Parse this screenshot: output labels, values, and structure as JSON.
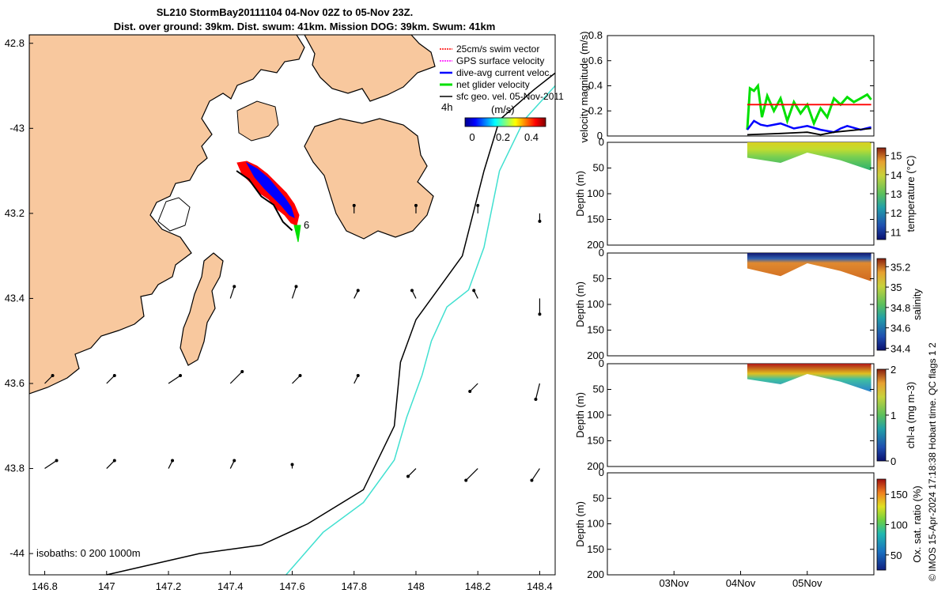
{
  "title": {
    "line1": "SL210 StormBay20111104 04-Nov 02Z to 05-Nov 23Z.",
    "line2": "Dist. over ground: 39km. Dist. swum: 41km. Mission DOG: 39km. Swum: 41km"
  },
  "footer_text": "© IMOS 15-Apr-2024 17:18:38 Hobart time. QC flags 1  2",
  "colors": {
    "land": "#f8c89e",
    "swim_vector": "#ff0000",
    "gps_velocity": "#ff00ff",
    "dive_avg": "#0000ff",
    "net_glider": "#00e000",
    "sfc_geo": "#000000",
    "isobath_200": "#000000",
    "isobath_1000": "#40e0d0"
  },
  "chart_data": [
    {
      "type": "map",
      "title": "SL210 StormBay20111104 04-Nov 02Z to 05-Nov 23Z.",
      "xlim": [
        146.75,
        148.45
      ],
      "ylim": [
        -44.05,
        -42.78
      ],
      "xticks": [
        146.8,
        147,
        147.2,
        147.4,
        147.6,
        147.8,
        148,
        148.2,
        148.4
      ],
      "xtick_labels": [
        "146.8",
        "147",
        "147.2",
        "147.4",
        "147.6",
        "147.8",
        "148",
        "148.2",
        "148.4"
      ],
      "yticks": [
        -42.8,
        -43,
        -43.2,
        -43.4,
        -43.6,
        -43.8,
        -44
      ],
      "ytick_labels": [
        "42.8",
        "-43",
        "43.2",
        "43.4",
        "43.6",
        "43.8",
        "-44"
      ],
      "legend": {
        "position": "top-right",
        "entries": [
          "25cm/s swim vector",
          "GPS surface velocity",
          "dive-avg current veloc.",
          "net glider velocity",
          "sfc geo. vel. 05-Nov-2011"
        ],
        "time_label": "4h",
        "day_marker": "6"
      },
      "colorbar": {
        "label": "(m/s)",
        "ticks": [
          0,
          0.2,
          0.4
        ],
        "tick_labels": [
          "0",
          "0.2",
          "0.4"
        ],
        "range": [
          0,
          0.5
        ]
      },
      "isobath_note": "isobaths: 0   200  1000m",
      "isobath_200": [
        [
          147.0,
          -44.05
        ],
        [
          147.3,
          -44.0
        ],
        [
          147.5,
          -43.98
        ],
        [
          147.65,
          -43.93
        ],
        [
          147.83,
          -43.85
        ],
        [
          147.93,
          -43.7
        ],
        [
          147.95,
          -43.55
        ],
        [
          148.0,
          -43.45
        ],
        [
          148.08,
          -43.37
        ],
        [
          148.15,
          -43.3
        ],
        [
          148.22,
          -43.1
        ],
        [
          148.27,
          -42.98
        ],
        [
          148.38,
          -42.91
        ],
        [
          148.45,
          -42.87
        ]
      ],
      "isobath_1000": [
        [
          147.58,
          -44.05
        ],
        [
          147.7,
          -43.95
        ],
        [
          147.83,
          -43.88
        ],
        [
          147.93,
          -43.78
        ],
        [
          147.97,
          -43.68
        ],
        [
          148.02,
          -43.58
        ],
        [
          148.05,
          -43.5
        ],
        [
          148.1,
          -43.42
        ],
        [
          148.17,
          -43.38
        ],
        [
          148.22,
          -43.28
        ],
        [
          148.27,
          -43.1
        ],
        [
          148.35,
          -42.98
        ],
        [
          148.45,
          -42.9
        ]
      ],
      "glider_track": [
        [
          147.42,
          -43.1
        ],
        [
          147.46,
          -43.12
        ],
        [
          147.5,
          -43.16
        ],
        [
          147.54,
          -43.18
        ],
        [
          147.57,
          -43.22
        ],
        [
          147.6,
          -43.24
        ]
      ],
      "geo_vectors": [
        {
          "lon": 147.4,
          "lat": -43.4,
          "u": 0.01,
          "v": 0.03
        },
        {
          "lon": 147.6,
          "lat": -43.4,
          "u": 0.01,
          "v": 0.03
        },
        {
          "lon": 147.8,
          "lat": -43.4,
          "u": 0.01,
          "v": 0.02
        },
        {
          "lon": 148.0,
          "lat": -43.4,
          "u": -0.01,
          "v": 0.02
        },
        {
          "lon": 148.2,
          "lat": -43.4,
          "u": -0.01,
          "v": 0.02
        },
        {
          "lon": 148.4,
          "lat": -43.4,
          "u": 0.0,
          "v": -0.04
        },
        {
          "lon": 146.8,
          "lat": -43.6,
          "u": 0.02,
          "v": 0.02
        },
        {
          "lon": 147.0,
          "lat": -43.6,
          "u": 0.02,
          "v": 0.02
        },
        {
          "lon": 147.2,
          "lat": -43.6,
          "u": 0.03,
          "v": 0.02
        },
        {
          "lon": 147.4,
          "lat": -43.6,
          "u": 0.03,
          "v": 0.03
        },
        {
          "lon": 147.6,
          "lat": -43.6,
          "u": 0.02,
          "v": 0.02
        },
        {
          "lon": 147.8,
          "lat": -43.6,
          "u": 0.01,
          "v": 0.02
        },
        {
          "lon": 148.2,
          "lat": -43.6,
          "u": -0.02,
          "v": -0.02
        },
        {
          "lon": 148.4,
          "lat": -43.6,
          "u": -0.01,
          "v": -0.04
        },
        {
          "lon": 146.8,
          "lat": -43.8,
          "u": 0.03,
          "v": 0.02
        },
        {
          "lon": 147.0,
          "lat": -43.8,
          "u": 0.02,
          "v": 0.02
        },
        {
          "lon": 147.2,
          "lat": -43.8,
          "u": 0.01,
          "v": 0.02
        },
        {
          "lon": 147.4,
          "lat": -43.8,
          "u": 0.01,
          "v": 0.02
        },
        {
          "lon": 147.6,
          "lat": -43.8,
          "u": 0.0,
          "v": 0.01
        },
        {
          "lon": 148.0,
          "lat": -43.8,
          "u": -0.02,
          "v": -0.02
        },
        {
          "lon": 148.2,
          "lat": -43.8,
          "u": -0.03,
          "v": -0.03
        },
        {
          "lon": 148.4,
          "lat": -43.8,
          "u": -0.02,
          "v": -0.03
        },
        {
          "lon": 147.8,
          "lat": -43.2,
          "u": 0.0,
          "v": 0.02
        },
        {
          "lon": 148.0,
          "lat": -43.2,
          "u": 0.0,
          "v": 0.02
        },
        {
          "lon": 148.2,
          "lat": -43.2,
          "u": 0.0,
          "v": 0.02
        },
        {
          "lon": 148.4,
          "lat": -43.2,
          "u": 0.0,
          "v": -0.02
        }
      ]
    },
    {
      "type": "line",
      "ylabel": "velocity magnitude (m/s)",
      "ylim": [
        0,
        0.8
      ],
      "yticks": [
        0,
        0.2,
        0.4,
        0.6,
        0.8
      ],
      "ytick_labels": [
        "0",
        "0.2",
        "0.4",
        "0.6",
        "0.8"
      ],
      "xlim": [
        1.0,
        3.0
      ],
      "series": [
        {
          "name": "net glider velocity",
          "color": "#00e000",
          "x": [
            2.05,
            2.07,
            2.1,
            2.13,
            2.16,
            2.2,
            2.25,
            2.3,
            2.35,
            2.4,
            2.45,
            2.5,
            2.55,
            2.6,
            2.65,
            2.7,
            2.75,
            2.8,
            2.85,
            2.9,
            2.95,
            2.98
          ],
          "values": [
            0.05,
            0.38,
            0.36,
            0.4,
            0.15,
            0.32,
            0.2,
            0.3,
            0.12,
            0.27,
            0.18,
            0.25,
            0.1,
            0.22,
            0.15,
            0.3,
            0.25,
            0.31,
            0.27,
            0.3,
            0.33,
            0.29
          ]
        },
        {
          "name": "dive-avg current veloc.",
          "color": "#0000ff",
          "x": [
            2.05,
            2.1,
            2.15,
            2.2,
            2.3,
            2.4,
            2.5,
            2.6,
            2.7,
            2.75,
            2.8,
            2.9,
            2.98
          ],
          "values": [
            0.05,
            0.12,
            0.09,
            0.08,
            0.1,
            0.06,
            0.08,
            0.05,
            0.03,
            0.06,
            0.08,
            0.05,
            0.07
          ]
        },
        {
          "name": "sfc geo. vel.",
          "color": "#000000",
          "x": [
            2.05,
            2.3,
            2.5,
            2.6,
            2.7,
            2.98
          ],
          "values": [
            0.01,
            0.02,
            0.03,
            0.01,
            0.03,
            0.06
          ]
        },
        {
          "name": "25cm/s swim vector",
          "color": "#ff0000",
          "x": [
            2.05,
            2.98
          ],
          "values": [
            0.25,
            0.25
          ]
        }
      ]
    },
    {
      "type": "heatmap",
      "variable": "temperature",
      "ylabel": "Depth (m)",
      "clabel": "temperature (°C)",
      "ylim": [
        200,
        0
      ],
      "yticks": [
        0,
        50,
        100,
        150,
        200
      ],
      "ytick_labels": [
        "0",
        "50",
        "100",
        "150",
        "200"
      ],
      "crange": [
        10.6,
        15.4
      ],
      "cticks": [
        11,
        12,
        13,
        14,
        15
      ],
      "ctick_labels": [
        "11",
        "12",
        "13",
        "14",
        "15"
      ],
      "bottom_profile": {
        "x": [
          2.05,
          2.3,
          2.5,
          2.75,
          2.98
        ],
        "depth": [
          30,
          40,
          20,
          35,
          55
        ]
      }
    },
    {
      "type": "heatmap",
      "variable": "salinity",
      "ylabel": "Depth (m)",
      "clabel": "salinity",
      "ylim": [
        200,
        0
      ],
      "yticks": [
        0,
        50,
        100,
        150,
        200
      ],
      "ytick_labels": [
        "0",
        "50",
        "100",
        "150",
        "200"
      ],
      "crange": [
        34.38,
        35.28
      ],
      "cticks": [
        34.4,
        34.6,
        34.8,
        35,
        35.2
      ],
      "ctick_labels": [
        "34.4",
        "34.6",
        "34.8",
        "35",
        "35.2"
      ],
      "bottom_profile": {
        "x": [
          2.05,
          2.3,
          2.5,
          2.75,
          2.98
        ],
        "depth": [
          30,
          45,
          20,
          35,
          55
        ]
      }
    },
    {
      "type": "heatmap",
      "variable": "chl-a",
      "ylabel": "Depth (m)",
      "clabel": "chl-a (mg m-3)",
      "ylim": [
        200,
        0
      ],
      "yticks": [
        0,
        50,
        100,
        150,
        200
      ],
      "ytick_labels": [
        "0",
        "50",
        "100",
        "150",
        "200"
      ],
      "crange": [
        0,
        2
      ],
      "cticks": [
        0,
        1,
        2
      ],
      "ctick_labels": [
        "0",
        "1",
        "2"
      ],
      "bottom_profile": {
        "x": [
          2.05,
          2.3,
          2.5,
          2.75,
          2.98
        ],
        "depth": [
          30,
          40,
          20,
          35,
          55
        ]
      }
    },
    {
      "type": "heatmap",
      "variable": "oxygen saturation",
      "ylabel": "Depth (m)",
      "clabel": "Ox. sat. ratio (%)",
      "ylim": [
        200,
        0
      ],
      "yticks": [
        0,
        50,
        100,
        150,
        200
      ],
      "ytick_labels": [
        "0",
        "50",
        "100",
        "150",
        "200"
      ],
      "crange": [
        25,
        175
      ],
      "cticks": [
        50,
        100,
        150
      ],
      "ctick_labels": [
        "50",
        "100",
        "150"
      ],
      "xticks": [
        1.5,
        2.0,
        2.5
      ],
      "xtick_labels": [
        "03Nov",
        "04Nov",
        "05Nov"
      ]
    }
  ]
}
